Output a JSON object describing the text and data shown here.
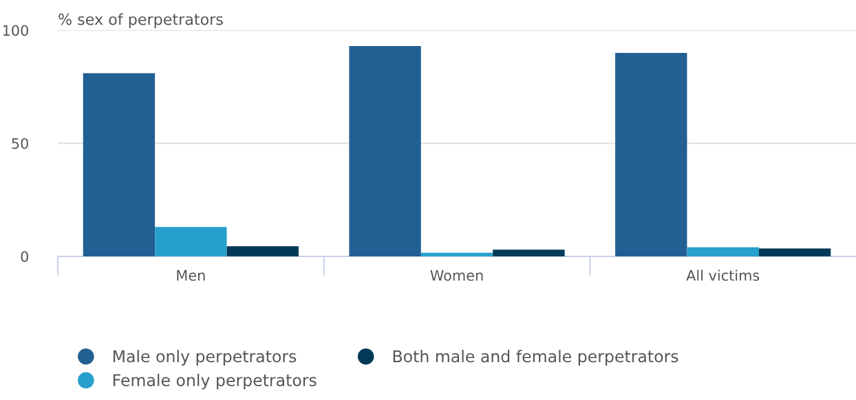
{
  "chart_data": {
    "type": "bar",
    "ylabel": "% sex of perpetrators",
    "categories": [
      "Men",
      "Women",
      "All victims"
    ],
    "series": [
      {
        "name": "Male only perpetrators",
        "color": "#226094",
        "values": [
          81,
          93,
          90
        ]
      },
      {
        "name": "Female only perpetrators",
        "color": "#28a0cc",
        "values": [
          13,
          1.6,
          4
        ]
      },
      {
        "name": "Both male and female perpetrators",
        "color": "#003a58",
        "values": [
          4.5,
          3,
          3.5
        ]
      }
    ],
    "ylim": [
      0,
      100
    ],
    "yticks": [
      0,
      50,
      100
    ],
    "grid": "y",
    "legend": "bottom"
  }
}
